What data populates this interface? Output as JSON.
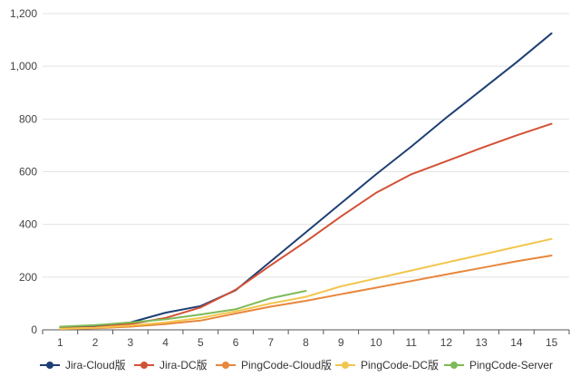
{
  "chart_data": {
    "type": "line",
    "x": [
      1,
      2,
      3,
      4,
      5,
      6,
      7,
      8,
      9,
      10,
      11,
      12,
      13,
      14,
      15
    ],
    "ylim": [
      0,
      1200
    ],
    "yticks": [
      0,
      200,
      400,
      600,
      800,
      1000,
      1200
    ],
    "ytick_labels": [
      "0",
      "200",
      "400",
      "600",
      "800",
      "1,000",
      "1,200"
    ],
    "xtick_labels": [
      "1",
      "2",
      "3",
      "4",
      "5",
      "6",
      "7",
      "8",
      "9",
      "10",
      "11",
      "12",
      "13",
      "14",
      "15"
    ],
    "grid": "horizontal",
    "legend_position": "bottom-left",
    "series": [
      {
        "name": "Jira-Cloud版",
        "color": "#1f3f74",
        "values": [
          8,
          12,
          28,
          65,
          90,
          150,
          260,
          370,
          480,
          590,
          695,
          805,
          910,
          1015,
          1125
        ]
      },
      {
        "name": "Jira-DC版",
        "color": "#d35136",
        "values": [
          5,
          10,
          22,
          45,
          85,
          152,
          245,
          335,
          430,
          520,
          590,
          640,
          690,
          738,
          782
        ]
      },
      {
        "name": "PingCode-Cloud版",
        "color": "#e8873d",
        "values": [
          3,
          6,
          12,
          22,
          35,
          62,
          88,
          110,
          135,
          160,
          185,
          210,
          235,
          260,
          282
        ]
      },
      {
        "name": "PingCode-DC版",
        "color": "#f2c64d",
        "values": [
          4,
          8,
          16,
          28,
          45,
          70,
          100,
          125,
          165,
          195,
          225,
          255,
          285,
          315,
          345
        ]
      },
      {
        "name": "PingCode-Server",
        "color": "#7dba57",
        "values": [
          12,
          18,
          28,
          40,
          58,
          78,
          120,
          148,
          null,
          null,
          null,
          null,
          null,
          null,
          null
        ]
      }
    ]
  }
}
